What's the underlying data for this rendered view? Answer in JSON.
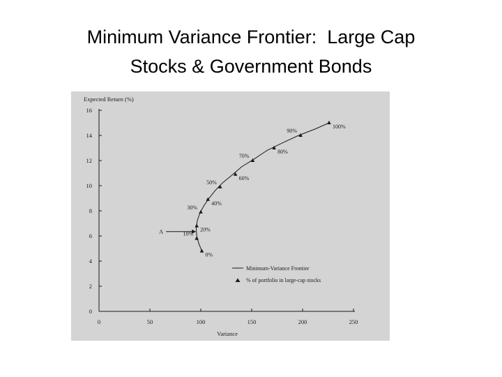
{
  "slide": {
    "title_line1": "Minimum Variance Frontier:  Large Cap",
    "title_line2": "Stocks & Government Bonds"
  },
  "colors": {
    "figure_background": "#d4d4d4",
    "ink": "#1a1a1a"
  },
  "chart_data": {
    "type": "line",
    "title": "",
    "xlabel": "Variance",
    "ylabel": "Expected Return (%)",
    "xlim": [
      0,
      250
    ],
    "ylim": [
      0,
      16
    ],
    "xticks": [
      0,
      50,
      100,
      150,
      200,
      250
    ],
    "yticks": [
      0,
      2,
      4,
      6,
      8,
      10,
      12,
      14,
      16
    ],
    "grid": false,
    "legend_position": "bottom-right",
    "legend": {
      "line_label": "Minimum-Variance Frontier",
      "marker_label": "% of portfolio in large-cap stocks"
    },
    "frontier_curve": {
      "name": "Minimum-Variance Frontier",
      "x": [
        101,
        98,
        96,
        95.5,
        96.5,
        99,
        103,
        108,
        114,
        121,
        130,
        140,
        152,
        165,
        180,
        196,
        212,
        226
      ],
      "y": [
        4.8,
        5.4,
        6.0,
        6.6,
        7.2,
        7.8,
        8.4,
        9.0,
        9.6,
        10.2,
        10.8,
        11.5,
        12.1,
        12.8,
        13.4,
        14.0,
        14.5,
        15.0
      ]
    },
    "portfolio_points": {
      "name": "% of portfolio in large-cap stocks",
      "x": [
        101,
        96,
        96,
        100,
        107,
        119,
        134,
        151,
        172,
        198,
        226
      ],
      "y": [
        4.8,
        5.8,
        6.8,
        7.9,
        8.9,
        9.9,
        10.9,
        12.0,
        13.0,
        14.0,
        15.0
      ],
      "labels": [
        "0%",
        "10%",
        "20%",
        "30%",
        "40%",
        "50%",
        "60%",
        "70%",
        "80%",
        "90%",
        "100%"
      ],
      "label_sides": [
        "right",
        "left",
        "right",
        "left",
        "right",
        "left",
        "right",
        "left",
        "right",
        "left",
        "right"
      ]
    },
    "annotations": [
      {
        "text": "A",
        "x": 96,
        "y": 6.35,
        "kind": "arrow"
      }
    ]
  }
}
